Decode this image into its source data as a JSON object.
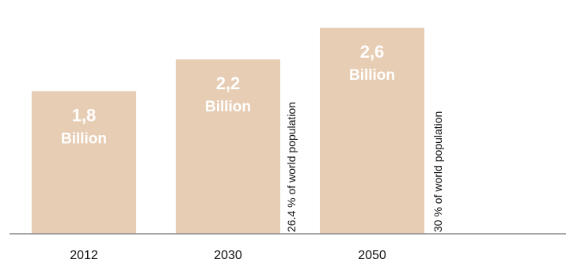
{
  "chart_data": {
    "type": "bar",
    "categories": [
      "2012",
      "2030",
      "2050"
    ],
    "values": [
      1.8,
      2.2,
      2.6
    ],
    "bar_labels": [
      {
        "value": "1,8",
        "unit": "Billion"
      },
      {
        "value": "2,2",
        "unit": "Billion"
      },
      {
        "value": "2,6",
        "unit": "Billion"
      }
    ],
    "annotations": [
      {
        "category": "2030",
        "text": "26.4 %  of world population"
      },
      {
        "category": "2050",
        "text": "30 %  of world population"
      }
    ],
    "title": "",
    "xlabel": "",
    "ylabel": "",
    "ylim": [
      0,
      2.9
    ],
    "grid": false,
    "legend": "none",
    "colors": {
      "bar": "#E7CDB4",
      "axis": "#888888",
      "bar_text": "#FFFFFF",
      "text": "#111111"
    }
  }
}
